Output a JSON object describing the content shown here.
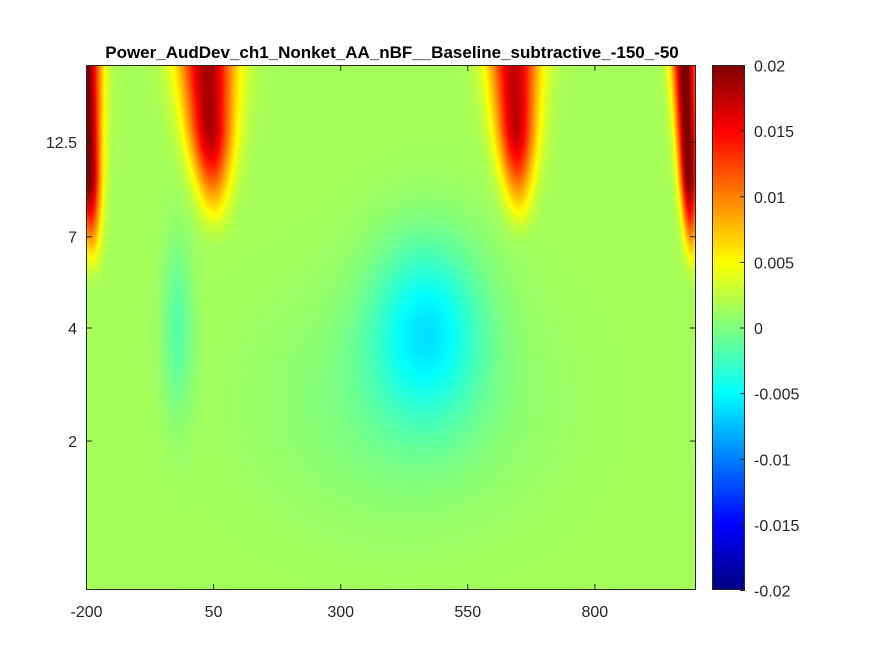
{
  "chart_data": {
    "type": "heatmap",
    "title": "Power_AudDev_ch1_Nonket_AA_nBF__Baseline_subtractive_-150_-50",
    "xlabel": "",
    "ylabel": "",
    "colormap": "jet",
    "xlim": [
      -200,
      1000
    ],
    "ylim": [
      0.8,
      20
    ],
    "y_scale": "log",
    "x_ticks": [
      -200,
      50,
      300,
      550,
      800
    ],
    "x_tick_labels": [
      "-200",
      "50",
      "300",
      "550",
      "800"
    ],
    "y_ticks": [
      2,
      4,
      7,
      12.5
    ],
    "y_tick_labels": [
      "2",
      "4",
      "7",
      "12.5"
    ],
    "colorbar": {
      "limits": [
        -0.02,
        0.02
      ],
      "ticks": [
        0.02,
        0.015,
        0.01,
        0.005,
        0,
        -0.005,
        -0.01,
        -0.015,
        -0.02
      ],
      "tick_labels": [
        "0.02",
        "0.015",
        "0.01",
        "0.005",
        "0",
        "-0.005",
        "-0.01",
        "-0.015",
        "-0.02"
      ]
    },
    "baseline": 0.0015,
    "features": [
      {
        "kind": "positive",
        "x_center": -190,
        "x_width": 25,
        "freq_low": 7,
        "freq_high": 20,
        "peak": 0.02
      },
      {
        "kind": "positive",
        "x_center": 50,
        "x_width": 45,
        "freq_low": 9,
        "freq_high": 20,
        "peak": 0.017
      },
      {
        "kind": "positive",
        "x_center": 650,
        "x_width": 40,
        "freq_low": 9,
        "freq_high": 20,
        "peak": 0.016
      },
      {
        "kind": "positive",
        "x_center": 990,
        "x_width": 20,
        "freq_low": 7,
        "freq_high": 20,
        "peak": 0.02
      },
      {
        "kind": "negative",
        "x_center": 470,
        "x_width": 110,
        "freq_center": 4,
        "peak": -0.0065
      },
      {
        "kind": "negative",
        "x_center": -20,
        "x_width": 30,
        "freq_center": 4,
        "peak": -0.003
      }
    ]
  }
}
